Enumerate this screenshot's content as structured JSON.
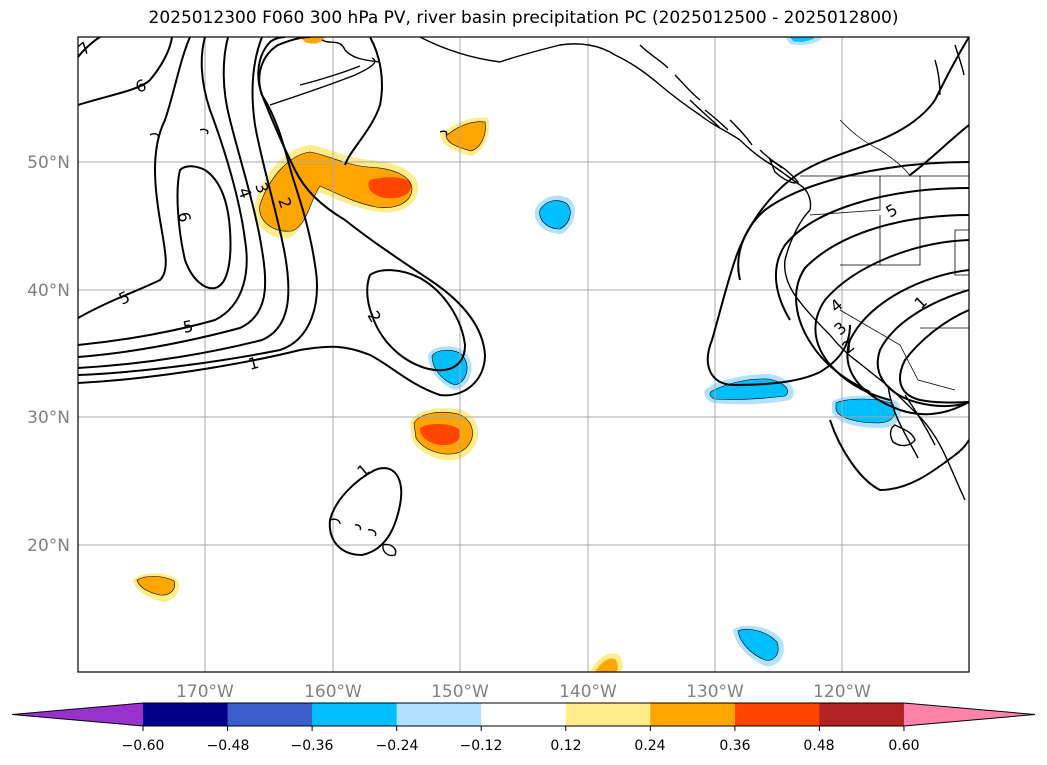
{
  "title": "2025012300 F060 300 hPa PV, river basin precipitation PC (2025012500 - 2025012800)",
  "map": {
    "lat_labels": [
      "50°N",
      "40°N",
      "30°N",
      "20°N"
    ],
    "lon_labels": [
      "170°W",
      "160°W",
      "150°W",
      "140°W",
      "130°W",
      "120°W"
    ],
    "contour_labels": [
      "7",
      "6",
      "6",
      "5",
      "5",
      "4",
      "3",
      "2",
      "1",
      "2",
      "1",
      "5",
      "4",
      "3",
      "2",
      "1"
    ]
  },
  "colorbar": {
    "ticks": [
      "−0.60",
      "−0.48",
      "−0.36",
      "−0.24",
      "−0.12",
      "0.12",
      "0.24",
      "0.36",
      "0.48",
      "0.60"
    ],
    "colors": [
      "#9932cc",
      "#00008b",
      "#3a5fcd",
      "#00bfff",
      "#b0e2ff",
      "#ffffff",
      "#ffec8b",
      "#ffa500",
      "#ff4500",
      "#b22222",
      "#ff82ab"
    ]
  }
}
